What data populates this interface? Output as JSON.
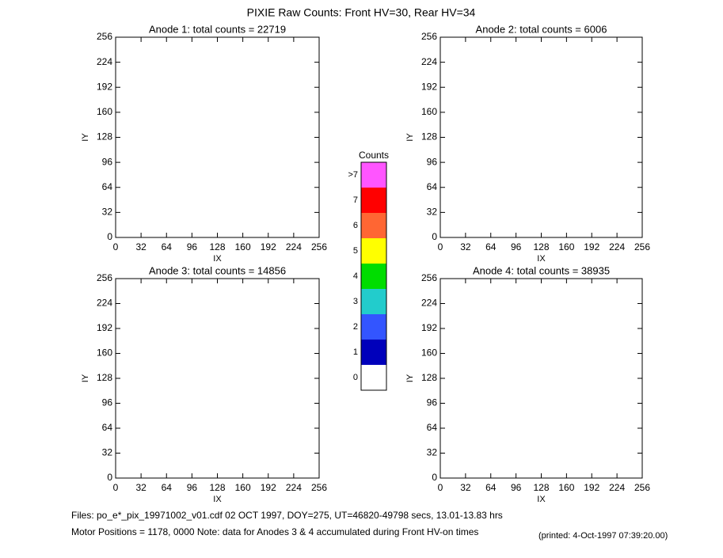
{
  "title": "PIXIE Raw Counts:  Front HV=30, Rear HV=34",
  "footer": {
    "files": "Files: po_e*_pix_19971002_v01.cdf    02 OCT 1997, DOY=275, UT=46820-49798 secs, 13.01-13.83 hrs",
    "motor": "Motor Positions = 1178, 0000    Note: data for Anodes 3 & 4 accumulated during Front HV-on times",
    "printed": "(printed:  4-Oct-1997 07:39:20.00)"
  },
  "colorbar": {
    "title": "Counts",
    "labels": [
      ">7",
      "7",
      "6",
      "5",
      "4",
      "3",
      "2",
      "1",
      "0"
    ],
    "colors": [
      "#ff55ff",
      "#ff0000",
      "#ff6633",
      "#ffff00",
      "#00dd00",
      "#22cccc",
      "#3355ff",
      "#0000bb",
      "#ffffff"
    ]
  },
  "chart_data": [
    {
      "type": "heatmap",
      "title": "Anode 1: total counts = 22719",
      "xlabel": "IX",
      "ylabel": "IY",
      "xlim": [
        0,
        256
      ],
      "ylim": [
        0,
        256
      ],
      "xticks": [
        0,
        32,
        64,
        96,
        128,
        160,
        192,
        224,
        256
      ],
      "yticks": [
        0,
        32,
        64,
        96,
        128,
        160,
        192,
        224,
        256
      ]
    },
    {
      "type": "heatmap",
      "title": "Anode 2: total counts = 6006",
      "xlabel": "IX",
      "ylabel": "IY",
      "xlim": [
        0,
        256
      ],
      "ylim": [
        0,
        256
      ],
      "xticks": [
        0,
        32,
        64,
        96,
        128,
        160,
        192,
        224,
        256
      ],
      "yticks": [
        0,
        32,
        64,
        96,
        128,
        160,
        192,
        224,
        256
      ]
    },
    {
      "type": "heatmap",
      "title": "Anode 3: total counts = 14856",
      "xlabel": "IX",
      "ylabel": "IY",
      "xlim": [
        0,
        256
      ],
      "ylim": [
        0,
        256
      ],
      "xticks": [
        0,
        32,
        64,
        96,
        128,
        160,
        192,
        224,
        256
      ],
      "yticks": [
        0,
        32,
        64,
        96,
        128,
        160,
        192,
        224,
        256
      ]
    },
    {
      "type": "heatmap",
      "title": "Anode 4: total counts = 38935",
      "xlabel": "IX",
      "ylabel": "IY",
      "xlim": [
        0,
        256
      ],
      "ylim": [
        0,
        256
      ],
      "xticks": [
        0,
        32,
        64,
        96,
        128,
        160,
        192,
        224,
        256
      ],
      "yticks": [
        0,
        32,
        64,
        96,
        128,
        160,
        192,
        224,
        256
      ]
    }
  ]
}
